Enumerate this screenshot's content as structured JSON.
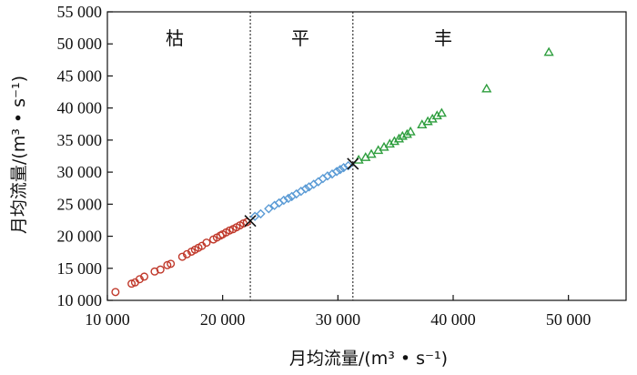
{
  "chart_data": {
    "type": "scatter",
    "title": "",
    "xlabel": "月均流量/(m³ • s⁻¹)",
    "ylabel": "月均流量/(m³ • s⁻¹)",
    "xlim": [
      10000,
      55000
    ],
    "ylim": [
      10000,
      55000
    ],
    "x_ticks": [
      "10 000",
      "20 000",
      "30 000",
      "40 000",
      "50 000"
    ],
    "y_ticks": [
      "10 000",
      "15 000",
      "20 000",
      "25 000",
      "30 000",
      "35 000",
      "40 000",
      "45 000",
      "50 000",
      "55 000"
    ],
    "x_tick_values": [
      10000,
      20000,
      30000,
      40000,
      50000
    ],
    "y_tick_values": [
      10000,
      15000,
      20000,
      25000,
      30000,
      35000,
      40000,
      45000,
      50000,
      55000
    ],
    "grid": false,
    "regions": [
      {
        "label": "枯",
        "x_from": 10000,
        "x_to": 22400
      },
      {
        "label": "平",
        "x_from": 22400,
        "x_to": 31300
      },
      {
        "label": "丰",
        "x_from": 31300,
        "x_to": 55000
      }
    ],
    "dividers": [
      22400,
      31300
    ],
    "crosses": [
      {
        "x": 22400,
        "y": 22400
      },
      {
        "x": 31300,
        "y": 31300
      }
    ],
    "series": [
      {
        "marker": "circle",
        "color": "#c0392b",
        "points": [
          [
            10700,
            11300
          ],
          [
            12100,
            12600
          ],
          [
            12400,
            12800
          ],
          [
            12800,
            13300
          ],
          [
            13200,
            13700
          ],
          [
            14100,
            14500
          ],
          [
            14600,
            14800
          ],
          [
            15200,
            15500
          ],
          [
            15500,
            15700
          ],
          [
            16500,
            16800
          ],
          [
            16900,
            17200
          ],
          [
            17300,
            17600
          ],
          [
            17600,
            17900
          ],
          [
            17900,
            18200
          ],
          [
            18200,
            18500
          ],
          [
            18600,
            19000
          ],
          [
            19200,
            19500
          ],
          [
            19500,
            19800
          ],
          [
            19800,
            20100
          ],
          [
            20000,
            20300
          ],
          [
            20300,
            20600
          ],
          [
            20600,
            20900
          ],
          [
            20900,
            21100
          ],
          [
            21200,
            21400
          ],
          [
            21500,
            21700
          ],
          [
            21800,
            22000
          ],
          [
            22100,
            22200
          ]
        ]
      },
      {
        "marker": "diamond",
        "color": "#5b9bd5",
        "points": [
          [
            22800,
            23100
          ],
          [
            23300,
            23500
          ],
          [
            24000,
            24300
          ],
          [
            24500,
            24800
          ],
          [
            24900,
            25200
          ],
          [
            25300,
            25600
          ],
          [
            25700,
            25900
          ],
          [
            26000,
            26200
          ],
          [
            26400,
            26600
          ],
          [
            26800,
            27000
          ],
          [
            27200,
            27400
          ],
          [
            27500,
            27700
          ],
          [
            27900,
            28100
          ],
          [
            28300,
            28500
          ],
          [
            28700,
            29000
          ],
          [
            29100,
            29400
          ],
          [
            29500,
            29700
          ],
          [
            29900,
            30100
          ],
          [
            30200,
            30400
          ],
          [
            30500,
            30700
          ],
          [
            30900,
            31000
          ]
        ]
      },
      {
        "marker": "triangle",
        "color": "#2e9e3e",
        "points": [
          [
            31800,
            31900
          ],
          [
            32400,
            32300
          ],
          [
            32900,
            32800
          ],
          [
            33500,
            33400
          ],
          [
            34000,
            33900
          ],
          [
            34500,
            34400
          ],
          [
            34900,
            34800
          ],
          [
            35300,
            35200
          ],
          [
            35600,
            35600
          ],
          [
            36000,
            35900
          ],
          [
            36300,
            36300
          ],
          [
            37300,
            37400
          ],
          [
            37800,
            37900
          ],
          [
            38200,
            38300
          ],
          [
            38600,
            38800
          ],
          [
            39000,
            39200
          ],
          [
            42900,
            43000
          ],
          [
            48300,
            48700
          ]
        ]
      }
    ]
  }
}
